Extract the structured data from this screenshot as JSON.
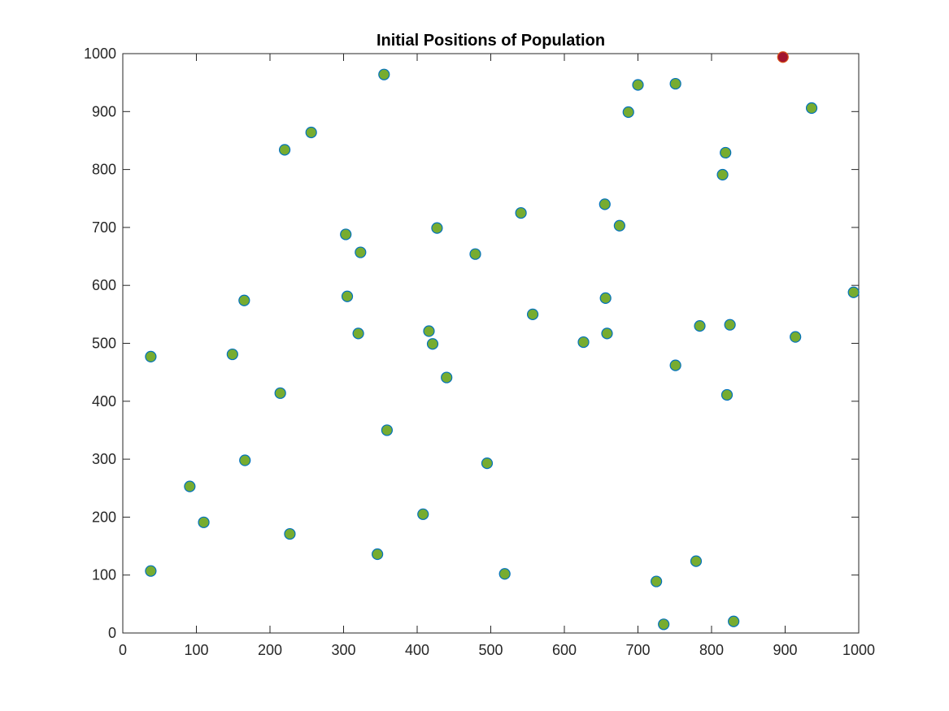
{
  "chart_data": {
    "type": "scatter",
    "title": "Initial Positions of Population",
    "xlabel": "",
    "ylabel": "",
    "xlim": [
      0,
      1000
    ],
    "ylim": [
      0,
      1000
    ],
    "xticks": [
      0,
      100,
      200,
      300,
      400,
      500,
      600,
      700,
      800,
      900,
      1000
    ],
    "yticks": [
      0,
      100,
      200,
      300,
      400,
      500,
      600,
      700,
      800,
      900,
      1000
    ],
    "xtick_labels": [
      "0",
      "100",
      "200",
      "300",
      "400",
      "500",
      "600",
      "700",
      "800",
      "900",
      "1000"
    ],
    "ytick_labels": [
      "0",
      "100",
      "200",
      "300",
      "400",
      "500",
      "600",
      "700",
      "800",
      "900",
      "1000"
    ],
    "grid": false,
    "box": true,
    "series": [
      {
        "marker": "circle",
        "face_color": "#77AC30",
        "edge_color": "#0072BD",
        "points": [
          [
            355,
            964
          ],
          [
            256,
            864
          ],
          [
            220,
            834
          ],
          [
            700,
            946
          ],
          [
            751,
            948
          ],
          [
            687,
            899
          ],
          [
            936,
            906
          ],
          [
            819,
            829
          ],
          [
            815,
            791
          ],
          [
            655,
            740
          ],
          [
            541,
            725
          ],
          [
            675,
            703
          ],
          [
            427,
            699
          ],
          [
            303,
            688
          ],
          [
            323,
            657
          ],
          [
            479,
            654
          ],
          [
            993,
            588
          ],
          [
            165,
            574
          ],
          [
            305,
            581
          ],
          [
            656,
            578
          ],
          [
            557,
            550
          ],
          [
            784,
            530
          ],
          [
            825,
            532
          ],
          [
            914,
            511
          ],
          [
            38,
            477
          ],
          [
            149,
            481
          ],
          [
            320,
            517
          ],
          [
            416,
            521
          ],
          [
            421,
            499
          ],
          [
            626,
            502
          ],
          [
            658,
            517
          ],
          [
            751,
            462
          ],
          [
            440,
            441
          ],
          [
            214,
            414
          ],
          [
            821,
            411
          ],
          [
            359,
            350
          ],
          [
            166,
            298
          ],
          [
            495,
            293
          ],
          [
            91,
            253
          ],
          [
            110,
            191
          ],
          [
            408,
            205
          ],
          [
            227,
            171
          ],
          [
            346,
            136
          ],
          [
            779,
            124
          ],
          [
            38,
            107
          ],
          [
            519,
            102
          ],
          [
            725,
            89
          ],
          [
            735,
            15
          ],
          [
            830,
            20
          ]
        ]
      },
      {
        "marker": "circle",
        "face_color": "#A2142F",
        "edge_color": "#D95319",
        "points": [
          [
            897,
            994
          ]
        ]
      }
    ]
  }
}
